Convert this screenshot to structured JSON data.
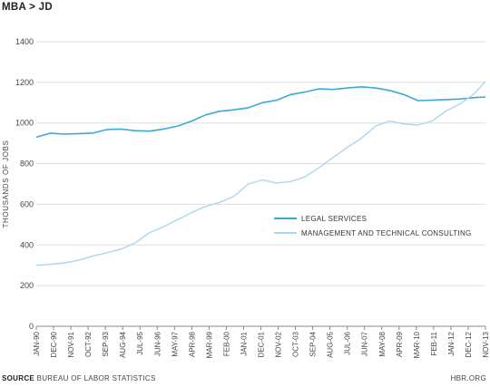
{
  "header": {
    "title": "MBA > JD"
  },
  "footer": {
    "source_label": "SOURCE",
    "source_text": "BUREAU OF LABOR STATISTICS",
    "credit": "HBR.ORG"
  },
  "chart_data": {
    "type": "line",
    "title": "MBA > JD",
    "ylabel": "THOUSANDS OF JOBS",
    "xlabel": "",
    "ylim": [
      0,
      1400
    ],
    "yticks": [
      0,
      200,
      400,
      600,
      800,
      1000,
      1200,
      1400
    ],
    "grid": "horizontal",
    "legend": "center-right",
    "x_tick_labels": [
      "JAN-90",
      "DEC-90",
      "NOV-91",
      "OCT-92",
      "SEP-93",
      "AUG-94",
      "JUL-95",
      "JUN-96",
      "MAY-97",
      "APR-98",
      "MAR-99",
      "FEB-00",
      "JAN-01",
      "DEC-01",
      "NOV-02",
      "OCT-03",
      "SEP-04",
      "AUG-05",
      "JUL-06",
      "JUN-07",
      "MAY-08",
      "APR-09",
      "MAR-10",
      "FEB-11",
      "JAN-12",
      "DEC-12",
      "NOV-13"
    ],
    "series": [
      {
        "name": "LEGAL SERVICES",
        "color": "#3ba9d6",
        "points": [
          [
            "JAN-90",
            930
          ],
          [
            "OCT-90",
            950
          ],
          [
            "JUL-91",
            945
          ],
          [
            "APR-92",
            948
          ],
          [
            "JAN-93",
            950
          ],
          [
            "OCT-93",
            968
          ],
          [
            "JUL-94",
            970
          ],
          [
            "APR-95",
            962
          ],
          [
            "JAN-96",
            960
          ],
          [
            "OCT-96",
            970
          ],
          [
            "JUL-97",
            985
          ],
          [
            "APR-98",
            1010
          ],
          [
            "JAN-99",
            1040
          ],
          [
            "OCT-99",
            1058
          ],
          [
            "JUL-00",
            1065
          ],
          [
            "APR-01",
            1075
          ],
          [
            "JAN-02",
            1100
          ],
          [
            "OCT-02",
            1112
          ],
          [
            "JUL-03",
            1140
          ],
          [
            "APR-04",
            1152
          ],
          [
            "JAN-05",
            1168
          ],
          [
            "OCT-05",
            1165
          ],
          [
            "JUL-06",
            1172
          ],
          [
            "APR-07",
            1178
          ],
          [
            "JAN-08",
            1172
          ],
          [
            "OCT-08",
            1160
          ],
          [
            "JUL-09",
            1140
          ],
          [
            "APR-10",
            1110
          ],
          [
            "JAN-11",
            1112
          ],
          [
            "OCT-11",
            1115
          ],
          [
            "JUL-12",
            1118
          ],
          [
            "APR-13",
            1125
          ],
          [
            "NOV-13",
            1128
          ]
        ]
      },
      {
        "name": "MANAGEMENT AND TECHNICAL CONSULTING",
        "color": "#a9d7ef",
        "points": [
          [
            "JAN-90",
            300
          ],
          [
            "OCT-90",
            305
          ],
          [
            "JUL-91",
            312
          ],
          [
            "APR-92",
            325
          ],
          [
            "JAN-93",
            345
          ],
          [
            "OCT-93",
            362
          ],
          [
            "JUL-94",
            380
          ],
          [
            "APR-95",
            410
          ],
          [
            "JAN-96",
            460
          ],
          [
            "OCT-96",
            490
          ],
          [
            "JUL-97",
            525
          ],
          [
            "APR-98",
            560
          ],
          [
            "JAN-99",
            590
          ],
          [
            "OCT-99",
            610
          ],
          [
            "JUL-00",
            640
          ],
          [
            "APR-01",
            700
          ],
          [
            "JAN-02",
            720
          ],
          [
            "OCT-02",
            705
          ],
          [
            "JUL-03",
            712
          ],
          [
            "APR-04",
            735
          ],
          [
            "JAN-05",
            780
          ],
          [
            "OCT-05",
            830
          ],
          [
            "JUL-06",
            880
          ],
          [
            "APR-07",
            925
          ],
          [
            "JAN-08",
            985
          ],
          [
            "OCT-08",
            1010
          ],
          [
            "JUL-09",
            995
          ],
          [
            "APR-10",
            990
          ],
          [
            "JAN-11",
            1010
          ],
          [
            "OCT-11",
            1060
          ],
          [
            "JUL-12",
            1095
          ],
          [
            "APR-13",
            1145
          ],
          [
            "NOV-13",
            1205
          ]
        ]
      }
    ]
  }
}
